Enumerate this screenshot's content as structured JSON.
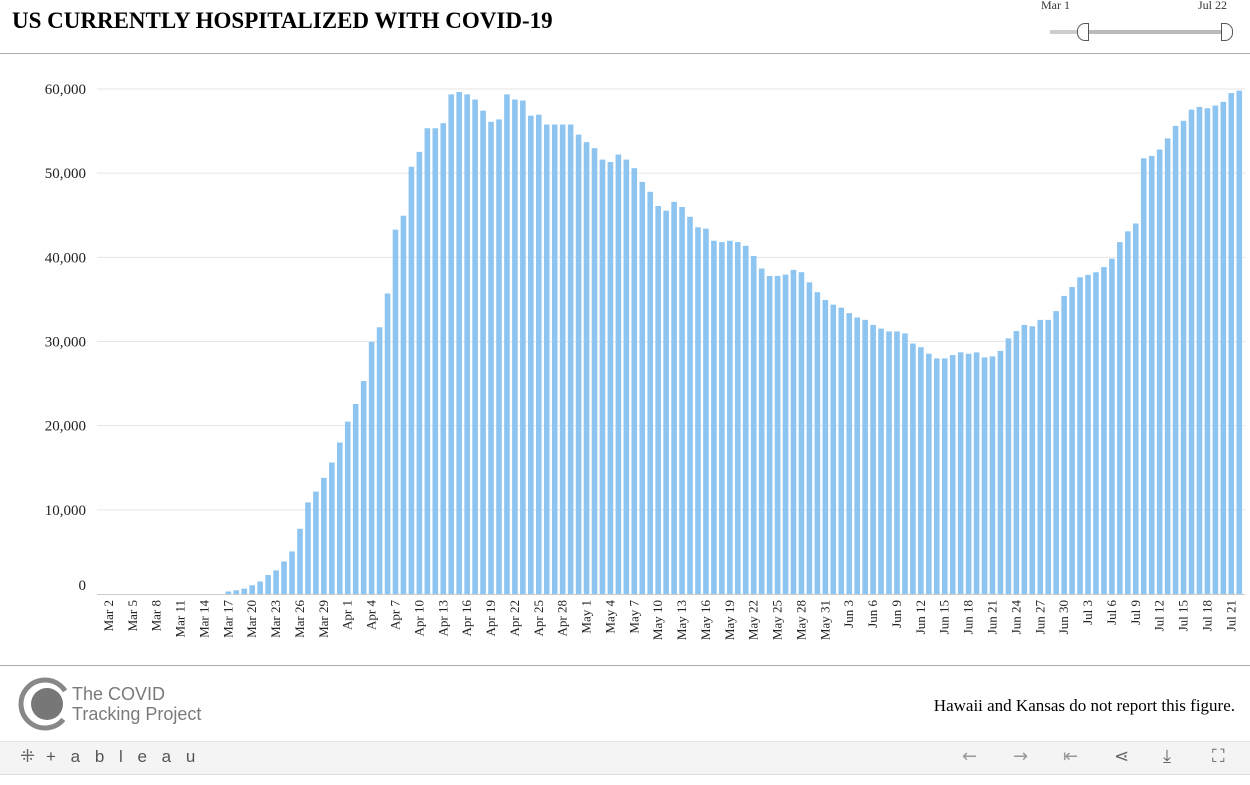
{
  "header": {
    "title": "US CURRENTLY HOSPITALIZED WITH COVID-19"
  },
  "slider": {
    "start_label": "Mar 1",
    "end_label": "Jul 22"
  },
  "footer": {
    "note": "Hawaii and Kansas do not report this figure.",
    "logo_line1": "The COVID",
    "logo_line2": "Tracking Project"
  },
  "toolbar": {
    "brand": "+ a b l e a u",
    "icons": [
      "undo-icon",
      "redo-icon",
      "revert-icon",
      "share-icon",
      "download-icon",
      "fullscreen-icon"
    ]
  },
  "colors": {
    "bar": "#8ec5f0",
    "grid": "#e6e6e6"
  },
  "chart_data": {
    "type": "bar",
    "title": "US CURRENTLY HOSPITALIZED WITH COVID-19",
    "xlabel": "",
    "ylabel": "",
    "ylim": [
      0,
      60000
    ],
    "yticks": [
      {
        "v": 0,
        "label": "0"
      },
      {
        "v": 10000,
        "label": "10,000"
      },
      {
        "v": 20000,
        "label": "20,000"
      },
      {
        "v": 30000,
        "label": "30,000"
      },
      {
        "v": 40000,
        "label": "40,000"
      },
      {
        "v": 50000,
        "label": "50,000"
      },
      {
        "v": 60000,
        "label": "60,000"
      }
    ],
    "start_date": "Mar 1",
    "grid": true,
    "xtick_labels": [
      "Mar 2",
      "Mar 5",
      "Mar 8",
      "Mar 11",
      "Mar 14",
      "Mar 17",
      "Mar 20",
      "Mar 23",
      "Mar 26",
      "Mar 29",
      "Apr 1",
      "Apr 4",
      "Apr 7",
      "Apr 10",
      "Apr 13",
      "Apr 16",
      "Apr 19",
      "Apr 22",
      "Apr 25",
      "Apr 28",
      "May 1",
      "May 4",
      "May 7",
      "May 10",
      "May 13",
      "May 16",
      "May 19",
      "May 22",
      "May 25",
      "May 28",
      "May 31",
      "Jun 3",
      "Jun 6",
      "Jun 9",
      "Jun 12",
      "Jun 15",
      "Jun 18",
      "Jun 21",
      "Jun 24",
      "Jun 27",
      "Jun 30",
      "Jul 3",
      "Jul 6",
      "Jul 9",
      "Jul 12",
      "Jul 15",
      "Jul 18",
      "Jul 21"
    ],
    "values": [
      0,
      0,
      0,
      0,
      0,
      0,
      0,
      0,
      0,
      0,
      0,
      0,
      0,
      0,
      0,
      0,
      300,
      440,
      640,
      1040,
      1490,
      2250,
      2800,
      3860,
      5060,
      7750,
      10880,
      12170,
      13800,
      15620,
      18000,
      20480,
      22570,
      25300,
      29960,
      31690,
      35700,
      43290,
      44940,
      50760,
      52530,
      55340,
      55340,
      55940,
      59360,
      59640,
      59360,
      58750,
      57430,
      56100,
      56390,
      59360,
      58750,
      58630,
      56830,
      56950,
      55780,
      55780,
      55780,
      55780,
      54580,
      53690,
      52970,
      51610,
      51330,
      52210,
      51610,
      50600,
      48960,
      47790,
      46100,
      45540,
      46590,
      45980,
      44820,
      43570,
      43410,
      41970,
      41810,
      41970,
      41810,
      41370,
      40160,
      38670,
      37790,
      37790,
      37950,
      38510,
      38230,
      37030,
      35860,
      34940,
      34380,
      34020,
      33370,
      32850,
      32570,
      31970,
      31530,
      31200,
      31200,
      30960,
      29760,
      29320,
      28550,
      27990,
      27990,
      28390,
      28710,
      28550,
      28710,
      28110,
      28230,
      28880,
      30360,
      31240,
      31970,
      31810,
      32570,
      32570,
      33610,
      35420,
      36470,
      37630,
      37910,
      38230,
      38840,
      39840,
      41810,
      43090,
      44020,
      51770,
      52050,
      52810,
      54140,
      55620,
      56220,
      57550,
      57870,
      57710,
      58030,
      58470,
      59520,
      59800
    ]
  }
}
